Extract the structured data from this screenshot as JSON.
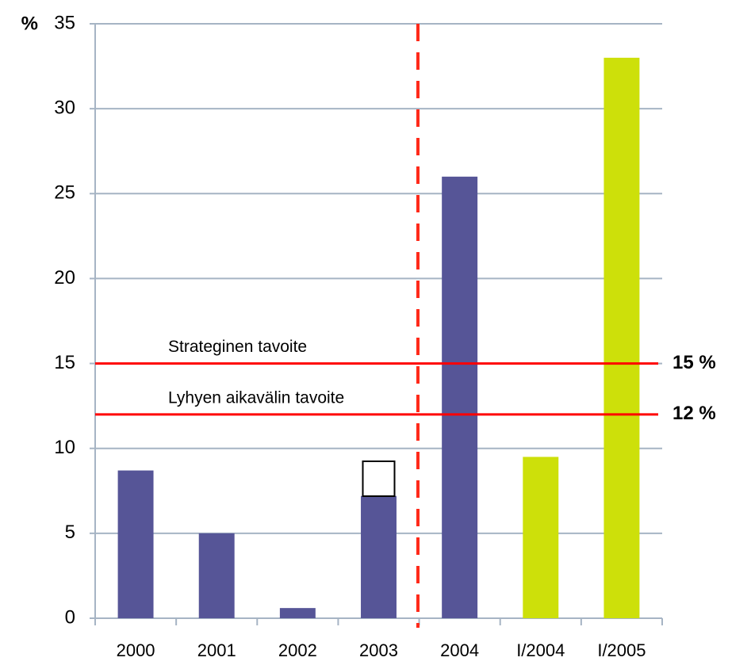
{
  "chart_data": {
    "type": "bar",
    "y_label": "%",
    "categories": [
      "2000",
      "2001",
      "2002",
      "2003",
      "2004",
      "I/2004",
      "I/2005"
    ],
    "values": [
      8.7,
      5.0,
      0.6,
      7.2,
      26.0,
      9.5,
      33.0
    ],
    "colors": [
      "#565597",
      "#565597",
      "#565597",
      "#565597",
      "#565597",
      "#cde00a",
      "#cde00a"
    ],
    "ylim": [
      0,
      35
    ],
    "yticks": [
      0,
      5,
      10,
      15,
      20,
      25,
      30,
      35
    ],
    "grid": true,
    "reference_lines": [
      {
        "name": "Strateginen tavoite",
        "value": 15,
        "value_label": "15 %",
        "color": "#ff0000"
      },
      {
        "name": "Lyhyen aikavälin tavoite",
        "value": 12,
        "value_label": "12 %",
        "color": "#ff0000"
      }
    ]
  }
}
